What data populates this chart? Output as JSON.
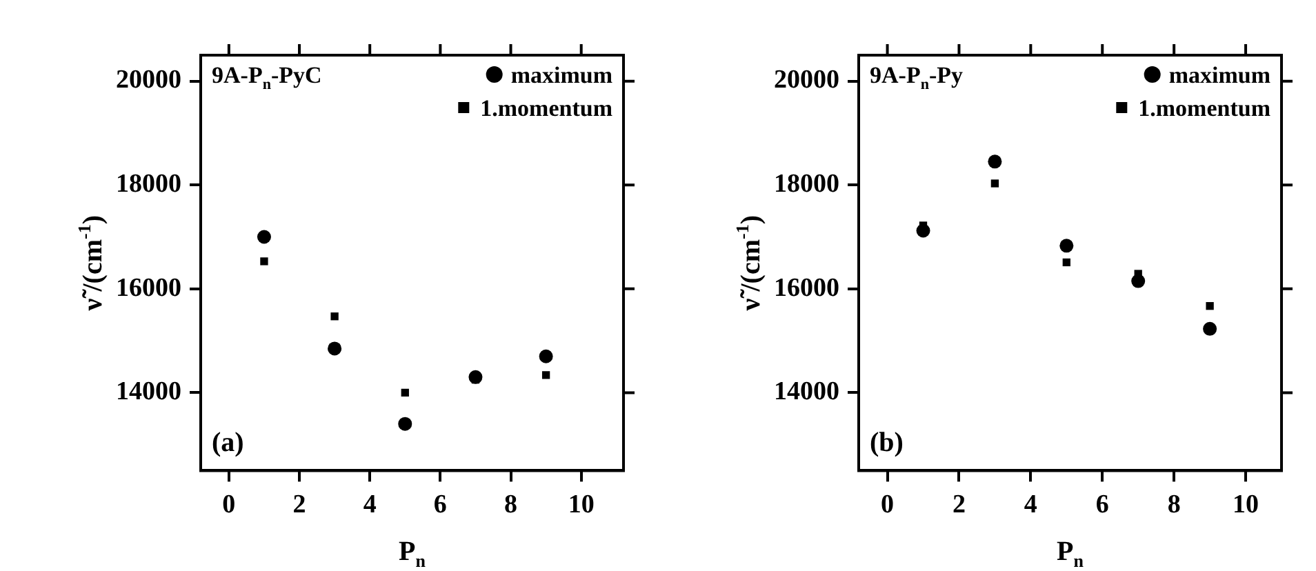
{
  "chart_data": [
    {
      "type": "scatter",
      "xlabel": "P$_{n}$",
      "ylabel": "ν̃ /(cm$^{-1}$)",
      "legend_title": "9A-P$_{n}$-PyC",
      "legend": "top right",
      "annotations": [
        "(a)"
      ],
      "grid": false,
      "x": [
        1,
        3,
        5,
        7,
        9
      ],
      "xlim": [
        -0.8,
        11.2
      ],
      "xticks": [
        0,
        2,
        4,
        6,
        8,
        10
      ],
      "ylim": [
        12500,
        20500
      ],
      "yticks": [
        14000,
        16000,
        18000,
        20000
      ],
      "series": [
        {
          "name": "maximum",
          "color": "#000000",
          "marker": "circle",
          "values": [
            17000,
            14850,
            13400,
            14300,
            14700
          ]
        },
        {
          "name": "1.momentum",
          "color": "#000000",
          "marker": "square",
          "values": [
            16530,
            15470,
            14000,
            14250,
            14340
          ]
        }
      ]
    },
    {
      "type": "scatter",
      "xlabel": "P$_{n}$",
      "ylabel": "ν̃ /(cm$^{-1}$)",
      "legend_title": "9A-P$_{n}$-Py",
      "legend": "top right",
      "annotations": [
        "(b)"
      ],
      "grid": false,
      "x": [
        1,
        3,
        5,
        7,
        9
      ],
      "xlim": [
        -0.8,
        11
      ],
      "xticks": [
        0,
        2,
        4,
        6,
        8,
        10
      ],
      "ylim": [
        12500,
        20500
      ],
      "yticks": [
        14000,
        16000,
        18000,
        20000
      ],
      "series": [
        {
          "name": "maximum",
          "color": "#000000",
          "marker": "circle",
          "values": [
            17120,
            18450,
            16830,
            16150,
            15230
          ]
        },
        {
          "name": "1.momentum",
          "color": "#000000",
          "marker": "square",
          "values": [
            17220,
            18030,
            16510,
            16290,
            15670
          ]
        }
      ]
    }
  ]
}
